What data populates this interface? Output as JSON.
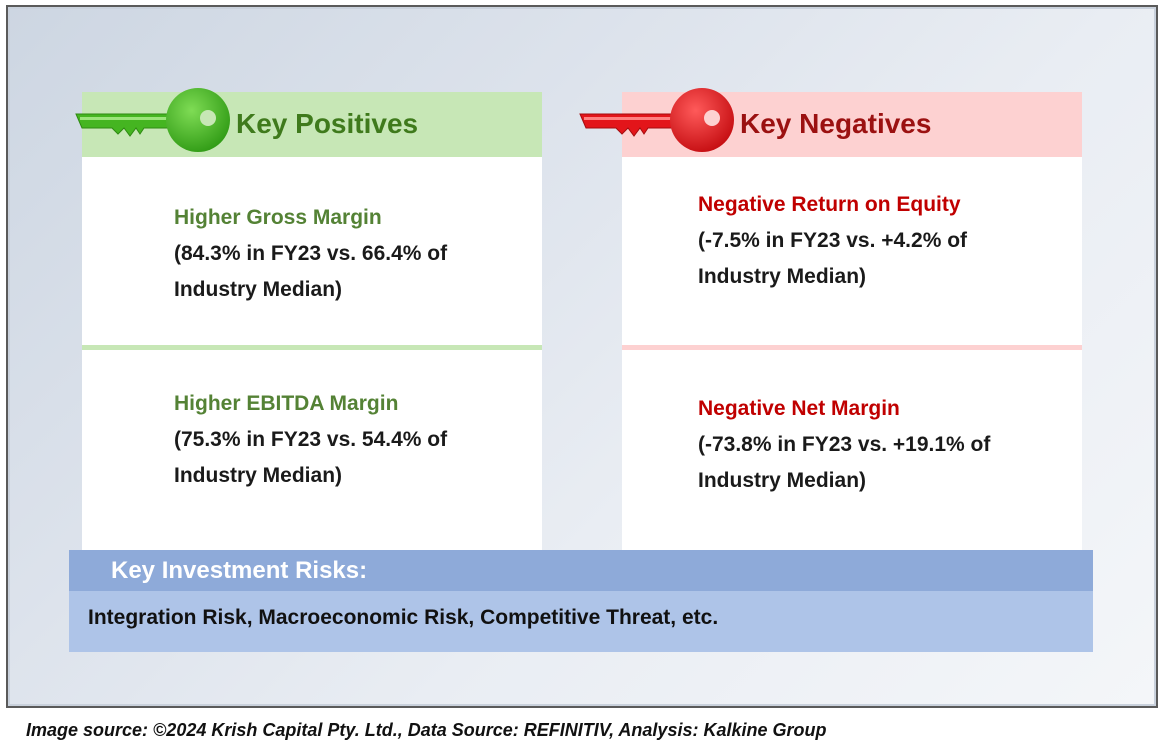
{
  "positives": {
    "title": "Key Positives",
    "accent": "#4cb82a",
    "items": [
      {
        "title": "Higher Gross Margin",
        "detail_line1": "(84.3% in FY23 vs. 66.4% of",
        "detail_line2": "Industry Median)"
      },
      {
        "title": "Higher EBITDA Margin",
        "detail_line1": "(75.3% in FY23 vs. 54.4% of",
        "detail_line2": "Industry Median)"
      }
    ]
  },
  "negatives": {
    "title": "Key Negatives",
    "accent": "#e3151a",
    "items": [
      {
        "title": "Negative Return on Equity",
        "detail_line1": "(-7.5% in FY23 vs. +4.2% of",
        "detail_line2": "Industry Median)"
      },
      {
        "title": "Negative Net Margin",
        "detail_line1": "(-73.8% in FY23 vs. +19.1% of",
        "detail_line2": "Industry Median)"
      }
    ]
  },
  "risks": {
    "title": "Key Investment Risks:",
    "text": "Integration Risk, Macroeconomic Risk, Competitive Threat, etc."
  },
  "footer": {
    "source": "Image source: ©2024 Krish Capital Pty. Ltd., Data Source: REFINITIV, Analysis: Kalkine Group"
  }
}
